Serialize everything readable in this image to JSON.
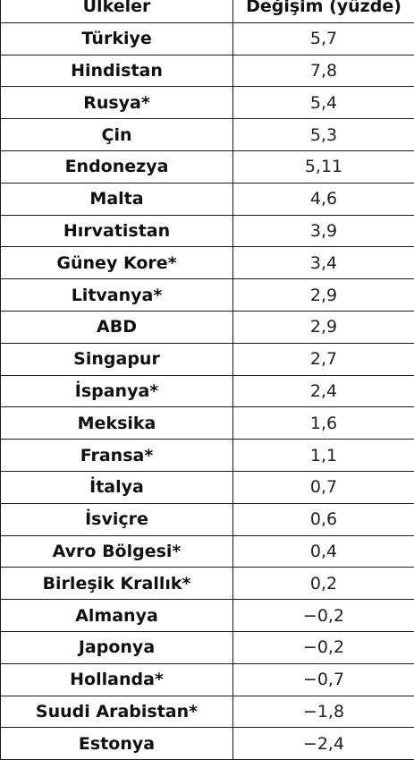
{
  "table": {
    "headers": [
      "Ülkeler",
      "Değişim (yüzde)"
    ],
    "rows": [
      {
        "country": "Türkiye",
        "value": "5,7"
      },
      {
        "country": "Hindistan",
        "value": "7,8"
      },
      {
        "country": "Rusya*",
        "value": "5,4"
      },
      {
        "country": "Çin",
        "value": "5,3"
      },
      {
        "country": "Endonezya",
        "value": "5,11"
      },
      {
        "country": "Malta",
        "value": "4,6"
      },
      {
        "country": "Hırvatistan",
        "value": "3,9"
      },
      {
        "country": "Güney Kore*",
        "value": "3,4"
      },
      {
        "country": "Litvanya*",
        "value": "2,9"
      },
      {
        "country": "ABD",
        "value": "2,9"
      },
      {
        "country": "Singapur",
        "value": "2,7"
      },
      {
        "country": "İspanya*",
        "value": "2,4"
      },
      {
        "country": "Meksika",
        "value": "1,6"
      },
      {
        "country": "Fransa*",
        "value": "1,1"
      },
      {
        "country": "İtalya",
        "value": "0,7"
      },
      {
        "country": "İsviçre",
        "value": "0,6"
      },
      {
        "country": "Avro Bölgesi*",
        "value": "0,4"
      },
      {
        "country": "Birleşik Krallık*",
        "value": "0,2"
      },
      {
        "country": "Almanya",
        "value": "−0,2"
      },
      {
        "country": "Japonya",
        "value": "−0,2"
      },
      {
        "country": "Hollanda*",
        "value": "−0,7"
      },
      {
        "country": "Suudi Arabistan*",
        "value": "−1,8"
      },
      {
        "country": "Estonya",
        "value": "−2,4"
      }
    ]
  }
}
